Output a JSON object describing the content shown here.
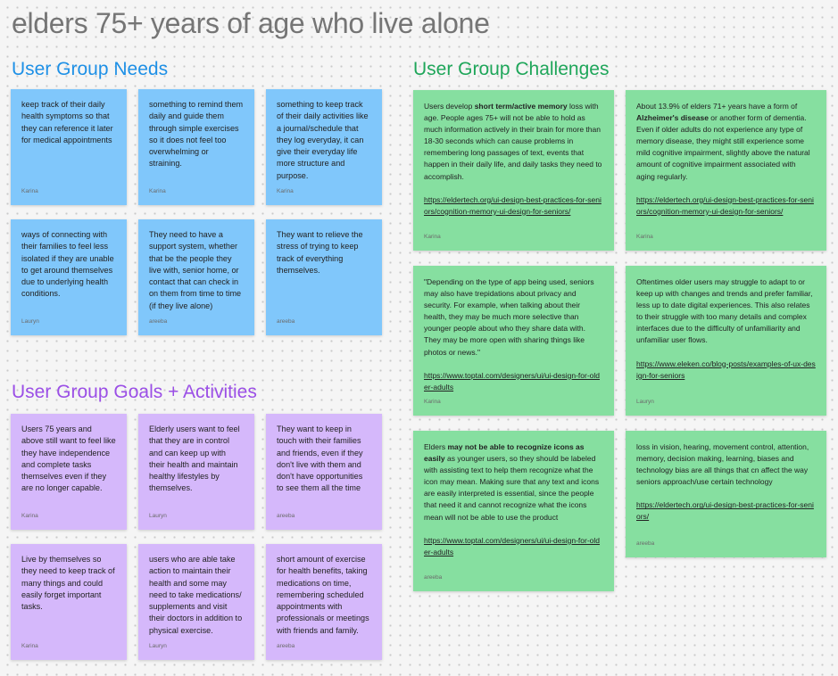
{
  "board_title": "elders 75+ years of age who live alone",
  "sections": {
    "needs": {
      "title": "User Group Needs",
      "stickies": [
        {
          "text": "keep track of their daily health symptoms so that they can reference it later for medical appointments",
          "author": "Karina"
        },
        {
          "text": "something to remind them daily and guide them through simple exercises so it does not feel too overwhelming or straining.",
          "author": "Karina"
        },
        {
          "text": "something to keep track of their daily activities like a journal/schedule that they log everyday, it can give their everyday life more structure and purpose.",
          "author": "Karina"
        },
        {
          "text": "ways of connecting with their families to feel less isolated if they are unable to get around themselves due to underlying health conditions.",
          "author": "Lauryn"
        },
        {
          "text": "They need to have a support system, whether that be the people they live with, senior home, or contact that can check in on them from time to time (if they live alone)",
          "author": "areeba"
        },
        {
          "text": "They want to relieve the stress of trying to keep track of everything themselves.",
          "author": "areeba"
        }
      ]
    },
    "goals": {
      "title": "User Group Goals + Activities",
      "stickies": [
        {
          "text": "Users 75 years and above still want to feel like they have independence and complete tasks themselves even if they are no longer capable.",
          "author": "Karina"
        },
        {
          "text": "Elderly users want to feel that they are in control and can keep up with their health and maintain healthy lifestyles by themselves.",
          "author": "Lauryn"
        },
        {
          "text": "They want to keep in touch with their families and friends, even if they don't live with them and don't have opportunities to see them all the time",
          "author": "areeba"
        },
        {
          "text": "Live by themselves so they need to keep track of many things and could easily forget important tasks.",
          "author": "Karina"
        },
        {
          "text": "users who are able take action to maintain their health and some may need to take medications/ supplements and visit their doctors in addition to physical exercise.",
          "author": "Lauryn"
        },
        {
          "text": "short amount of exercise for health benefits, taking medications on time, remembering scheduled appointments with professionals or meetings with friends and family.",
          "author": "areeba"
        }
      ]
    },
    "challenges": {
      "title": "User Group Challenges",
      "stickies": [
        {
          "pre": "Users develop ",
          "bold": "short term/active memory",
          "post": " loss with age. People ages 75+ will not be able to hold as much information actively in their brain for more than 18-30 seconds which can cause problems in remembering long passages of text, events that happen in their daily life, and daily tasks they need to accomplish.",
          "link": "https://eldertech.org/ui-design-best-practices-for-seniors/cognition-memory-ui-design-for-seniors/",
          "author": "Karina"
        },
        {
          "pre": "About 13.9% of elders 71+ years have a form of ",
          "bold": "Alzheimer's disease",
          "post": " or another form of dementia. Even if older adults do not experience any type of memory disease, they might still experience some mild cognitive impairment, slightly above the natural amount of cognitive impairment associated with aging regularly.",
          "link": "https://eldertech.org/ui-design-best-practices-for-seniors/cognition-memory-ui-design-for-seniors/",
          "author": "Karina"
        },
        {
          "pre": "\"Depending on the type of app being used, seniors may also have trepidations about privacy and security. For example, when talking about their health, they may be much more selective than younger people about who they share data with. They may be more open with sharing things like photos or news.\"",
          "bold": "",
          "post": "",
          "link": "https://www.toptal.com/designers/ui/ui-design-for-older-adults",
          "author": "Karina"
        },
        {
          "pre": "Oftentimes older users may struggle to adapt to or keep up with changes and trends and prefer familiar, less up to date digital experiences. This also relates to their struggle with too many details and complex interfaces due to the difficulty of unfamiliarity and unfamiliar user flows.",
          "bold": "",
          "post": "",
          "link": "https://www.eleken.co/blog-posts/examples-of-ux-design-for-seniors",
          "author": "Lauryn"
        },
        {
          "pre": "Elders ",
          "bold": "may not be able to recognize icons as easily",
          "post": " as younger users, so they should be labeled with assisting text to help them recognize what the icon may mean. Making sure that any text and icons are easily interpreted is essential, since the people that need it and cannot recognize what the icons mean will not be able to use the product",
          "link": "https://www.toptal.com/designers/ui/ui-design-for-older-adults",
          "author": "areeba"
        },
        {
          "pre": "loss in vision, hearing, movement control, attention, memory, decision making, learning, biases and technology bias are all things that cn affect the way seniors approach/use certain technology",
          "bold": "",
          "post": "",
          "link": "https://eldertech.org/ui-design-best-practices-for-seniors/",
          "author": "areeba"
        }
      ]
    }
  },
  "colors": {
    "needs_sticky": "#80c7fb",
    "goals_sticky": "#d5b8fb",
    "challenges_sticky": "#86dfa0",
    "needs_title": "#1e90e6",
    "goals_title": "#9b4fe6",
    "challenges_title": "#1fa65a"
  }
}
